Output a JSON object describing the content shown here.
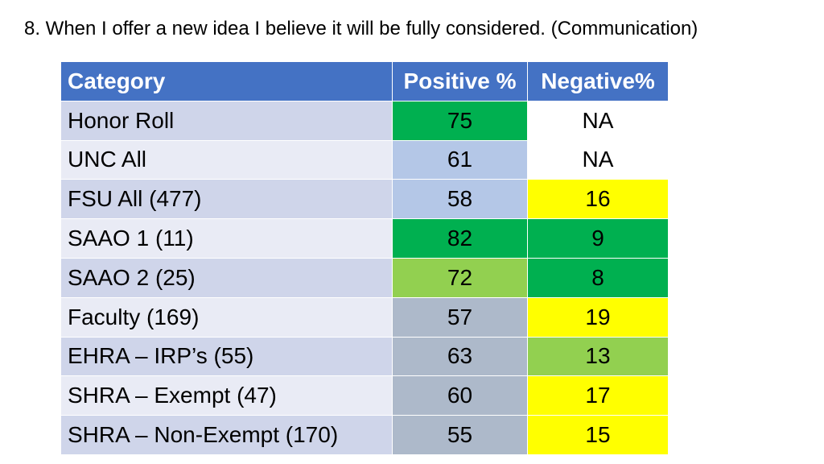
{
  "title": "8. When I offer a new idea I believe it will be fully considered. (Communication)",
  "table": {
    "headers": [
      "Category",
      "Positive %",
      "Negative%"
    ],
    "rows": [
      {
        "category": "Honor Roll",
        "positive": "75",
        "negative": "NA",
        "positive_color": "#00b050",
        "negative_color": "#ffffff"
      },
      {
        "category": "UNC All",
        "positive": "61",
        "negative": "NA",
        "positive_color": "#b4c7e7",
        "negative_color": "#ffffff"
      },
      {
        "category": "FSU All (477)",
        "positive": "58",
        "negative": "16",
        "positive_color": "#b4c7e7",
        "negative_color": "#ffff00"
      },
      {
        "category": "SAAO 1 (11)",
        "positive": "82",
        "negative": "9",
        "positive_color": "#00b050",
        "negative_color": "#00b050"
      },
      {
        "category": "SAAO 2 (25)",
        "positive": "72",
        "negative": "8",
        "positive_color": "#92d050",
        "negative_color": "#00b050"
      },
      {
        "category": "Faculty (169)",
        "positive": "57",
        "negative": "19",
        "positive_color": "#adb9ca",
        "negative_color": "#ffff00"
      },
      {
        "category": "EHRA – IRP’s (55)",
        "positive": "63",
        "negative": "13",
        "positive_color": "#adb9ca",
        "negative_color": "#92d050"
      },
      {
        "category": "SHRA – Exempt (47)",
        "positive": "60",
        "negative": "17",
        "positive_color": "#adb9ca",
        "negative_color": "#ffff00"
      },
      {
        "category": "SHRA – Non-Exempt (170)",
        "positive": "55",
        "negative": "15",
        "positive_color": "#adb9ca",
        "negative_color": "#ffff00"
      }
    ]
  }
}
